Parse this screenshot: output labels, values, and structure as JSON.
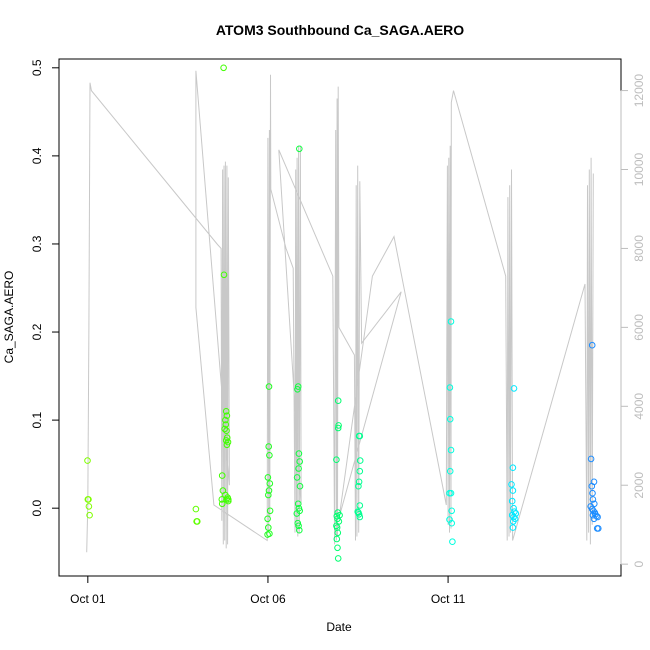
{
  "chart_data": {
    "type": "scatter",
    "title": "ATOM3 Southbound Ca_SAGA.AERO",
    "xlabel": "Date",
    "ylabel": "Ca_SAGA.AERO",
    "x_unit": "days since Oct 01",
    "xlim": [
      -0.8,
      14.8
    ],
    "ylim": [
      -0.077,
      0.51
    ],
    "y2lim": [
      -300,
      12800
    ],
    "x_ticks": [
      {
        "value": 0,
        "label": "Oct 01"
      },
      {
        "value": 5,
        "label": "Oct 06"
      },
      {
        "value": 10,
        "label": "Oct 11"
      }
    ],
    "y_ticks": [
      {
        "value": 0.0,
        "label": "0.0"
      },
      {
        "value": 0.1,
        "label": "0.1"
      },
      {
        "value": 0.2,
        "label": "0.2"
      },
      {
        "value": 0.3,
        "label": "0.3"
      },
      {
        "value": 0.4,
        "label": "0.4"
      },
      {
        "value": 0.5,
        "label": "0.5"
      }
    ],
    "y2_ticks": [
      {
        "value": 0,
        "label": "0"
      },
      {
        "value": 2000,
        "label": "2000"
      },
      {
        "value": 4000,
        "label": "4000"
      },
      {
        "value": 6000,
        "label": "6000"
      },
      {
        "value": 8000,
        "label": "8000"
      },
      {
        "value": 10000,
        "label": "10000"
      },
      {
        "value": 12000,
        "label": "12000"
      }
    ],
    "series": [
      {
        "name": "Ca_SAGA.AERO",
        "points": [
          {
            "x": -0.01,
            "y": 0.054,
            "color": "#80ff00"
          },
          {
            "x": 0.0,
            "y": 0.01,
            "color": "#80ff00"
          },
          {
            "x": 0.02,
            "y": 0.01,
            "color": "#80ff00"
          },
          {
            "x": 0.03,
            "y": 0.002,
            "color": "#80ff00"
          },
          {
            "x": 0.05,
            "y": -0.008,
            "color": "#80ff00"
          },
          {
            "x": 3.0,
            "y": -0.001,
            "color": "#60ff00"
          },
          {
            "x": 3.02,
            "y": -0.015,
            "color": "#60ff00"
          },
          {
            "x": 3.04,
            "y": -0.015,
            "color": "#60ff00"
          },
          {
            "x": 3.77,
            "y": 0.5,
            "color": "#40ff00"
          },
          {
            "x": 3.78,
            "y": 0.265,
            "color": "#40ff00"
          },
          {
            "x": 3.73,
            "y": 0.037,
            "color": "#40ff00"
          },
          {
            "x": 3.75,
            "y": 0.02,
            "color": "#40ff00"
          },
          {
            "x": 3.72,
            "y": 0.01,
            "color": "#40ff00"
          },
          {
            "x": 3.73,
            "y": 0.005,
            "color": "#40ff00"
          },
          {
            "x": 3.8,
            "y": 0.09,
            "color": "#40ff00"
          },
          {
            "x": 3.82,
            "y": 0.1,
            "color": "#40ff00"
          },
          {
            "x": 3.84,
            "y": 0.11,
            "color": "#40ff00"
          },
          {
            "x": 3.86,
            "y": 0.105,
            "color": "#40ff00"
          },
          {
            "x": 3.83,
            "y": 0.095,
            "color": "#40ff00"
          },
          {
            "x": 3.85,
            "y": 0.088,
            "color": "#40ff00"
          },
          {
            "x": 3.87,
            "y": 0.08,
            "color": "#40ff00"
          },
          {
            "x": 3.84,
            "y": 0.077,
            "color": "#40ff00"
          },
          {
            "x": 3.89,
            "y": 0.075,
            "color": "#40ff00"
          },
          {
            "x": 3.86,
            "y": 0.072,
            "color": "#40ff00"
          },
          {
            "x": 3.82,
            "y": 0.015,
            "color": "#40ff00"
          },
          {
            "x": 3.85,
            "y": 0.01,
            "color": "#40ff00"
          },
          {
            "x": 3.88,
            "y": 0.012,
            "color": "#40ff00"
          },
          {
            "x": 3.9,
            "y": 0.008,
            "color": "#40ff00"
          },
          {
            "x": 3.9,
            "y": 0.01,
            "color": "#40ff00"
          },
          {
            "x": 5.03,
            "y": 0.138,
            "color": "#20ff20"
          },
          {
            "x": 5.02,
            "y": 0.07,
            "color": "#20ff20"
          },
          {
            "x": 5.04,
            "y": 0.06,
            "color": "#20ff20"
          },
          {
            "x": 5.0,
            "y": 0.035,
            "color": "#20ff20"
          },
          {
            "x": 5.05,
            "y": 0.028,
            "color": "#20ff20"
          },
          {
            "x": 5.03,
            "y": 0.02,
            "color": "#20ff20"
          },
          {
            "x": 5.01,
            "y": 0.015,
            "color": "#20ff20"
          },
          {
            "x": 5.06,
            "y": -0.003,
            "color": "#20ff20"
          },
          {
            "x": 4.99,
            "y": -0.012,
            "color": "#20ff20"
          },
          {
            "x": 5.01,
            "y": -0.022,
            "color": "#20ff20"
          },
          {
            "x": 4.99,
            "y": -0.03,
            "color": "#20ff20"
          },
          {
            "x": 5.04,
            "y": -0.029,
            "color": "#20ff20"
          },
          {
            "x": 5.87,
            "y": 0.408,
            "color": "#10ff40"
          },
          {
            "x": 5.84,
            "y": 0.138,
            "color": "#10ff40"
          },
          {
            "x": 5.82,
            "y": 0.135,
            "color": "#10ff40"
          },
          {
            "x": 5.86,
            "y": 0.062,
            "color": "#10ff40"
          },
          {
            "x": 5.88,
            "y": 0.053,
            "color": "#10ff40"
          },
          {
            "x": 5.85,
            "y": 0.045,
            "color": "#10ff40"
          },
          {
            "x": 5.81,
            "y": 0.035,
            "color": "#10ff40"
          },
          {
            "x": 5.89,
            "y": 0.025,
            "color": "#10ff40"
          },
          {
            "x": 5.84,
            "y": 0.005,
            "color": "#10ff40"
          },
          {
            "x": 5.86,
            "y": 0.0,
            "color": "#10ff40"
          },
          {
            "x": 5.88,
            "y": -0.003,
            "color": "#10ff40"
          },
          {
            "x": 5.8,
            "y": -0.006,
            "color": "#10ff40"
          },
          {
            "x": 5.83,
            "y": -0.017,
            "color": "#10ff40"
          },
          {
            "x": 5.85,
            "y": -0.02,
            "color": "#10ff40"
          },
          {
            "x": 5.87,
            "y": -0.025,
            "color": "#10ff40"
          },
          {
            "x": 6.95,
            "y": 0.122,
            "color": "#00ff70"
          },
          {
            "x": 6.96,
            "y": 0.094,
            "color": "#00ff70"
          },
          {
            "x": 6.95,
            "y": 0.091,
            "color": "#00ff70"
          },
          {
            "x": 6.9,
            "y": 0.055,
            "color": "#00ff70"
          },
          {
            "x": 6.94,
            "y": -0.005,
            "color": "#00ff70"
          },
          {
            "x": 6.99,
            "y": -0.008,
            "color": "#00ff70"
          },
          {
            "x": 6.91,
            "y": -0.009,
            "color": "#00ff70"
          },
          {
            "x": 6.93,
            "y": -0.012,
            "color": "#00ff70"
          },
          {
            "x": 6.97,
            "y": -0.015,
            "color": "#00ff70"
          },
          {
            "x": 6.9,
            "y": -0.02,
            "color": "#00ff70"
          },
          {
            "x": 6.92,
            "y": -0.022,
            "color": "#00ff70"
          },
          {
            "x": 6.94,
            "y": -0.028,
            "color": "#00ff70"
          },
          {
            "x": 6.91,
            "y": -0.035,
            "color": "#00ff70"
          },
          {
            "x": 6.93,
            "y": -0.045,
            "color": "#00ff70"
          },
          {
            "x": 6.95,
            "y": -0.057,
            "color": "#00ff70"
          },
          {
            "x": 7.53,
            "y": 0.082,
            "color": "#00ff90"
          },
          {
            "x": 7.55,
            "y": 0.082,
            "color": "#00ff90"
          },
          {
            "x": 7.56,
            "y": 0.054,
            "color": "#00ff90"
          },
          {
            "x": 7.55,
            "y": 0.042,
            "color": "#00ff90"
          },
          {
            "x": 7.53,
            "y": 0.03,
            "color": "#00ff90"
          },
          {
            "x": 7.51,
            "y": 0.025,
            "color": "#00ff90"
          },
          {
            "x": 7.55,
            "y": 0.003,
            "color": "#00ff90"
          },
          {
            "x": 7.49,
            "y": -0.004,
            "color": "#00ff90"
          },
          {
            "x": 7.51,
            "y": -0.005,
            "color": "#00ff90"
          },
          {
            "x": 7.53,
            "y": -0.007,
            "color": "#00ff90"
          },
          {
            "x": 7.55,
            "y": -0.01,
            "color": "#00ff90"
          },
          {
            "x": 10.08,
            "y": 0.212,
            "color": "#00ffe0"
          },
          {
            "x": 10.05,
            "y": 0.137,
            "color": "#00ffe0"
          },
          {
            "x": 10.06,
            "y": 0.101,
            "color": "#00ffe0"
          },
          {
            "x": 10.08,
            "y": 0.066,
            "color": "#00ffe0"
          },
          {
            "x": 10.06,
            "y": 0.042,
            "color": "#00ffe0"
          },
          {
            "x": 10.04,
            "y": 0.017,
            "color": "#00ffe0"
          },
          {
            "x": 10.08,
            "y": 0.017,
            "color": "#00ffe0"
          },
          {
            "x": 10.1,
            "y": -0.003,
            "color": "#00ffe0"
          },
          {
            "x": 10.04,
            "y": -0.013,
            "color": "#00ffe0"
          },
          {
            "x": 10.1,
            "y": -0.017,
            "color": "#00ffe0"
          },
          {
            "x": 10.12,
            "y": -0.038,
            "color": "#00ffe0"
          },
          {
            "x": 11.83,
            "y": 0.136,
            "color": "#00e8ff"
          },
          {
            "x": 11.8,
            "y": 0.046,
            "color": "#00e8ff"
          },
          {
            "x": 11.76,
            "y": 0.027,
            "color": "#00e8ff"
          },
          {
            "x": 11.8,
            "y": 0.02,
            "color": "#00e8ff"
          },
          {
            "x": 11.78,
            "y": 0.008,
            "color": "#00e8ff"
          },
          {
            "x": 11.82,
            "y": 0.0,
            "color": "#00e8ff"
          },
          {
            "x": 11.84,
            "y": -0.004,
            "color": "#00e8ff"
          },
          {
            "x": 11.88,
            "y": -0.006,
            "color": "#00e8ff"
          },
          {
            "x": 11.78,
            "y": -0.008,
            "color": "#00e8ff"
          },
          {
            "x": 11.82,
            "y": -0.01,
            "color": "#00e8ff"
          },
          {
            "x": 11.86,
            "y": -0.012,
            "color": "#00e8ff"
          },
          {
            "x": 11.81,
            "y": -0.015,
            "color": "#00e8ff"
          },
          {
            "x": 11.8,
            "y": -0.022,
            "color": "#00e8ff"
          },
          {
            "x": 14.0,
            "y": 0.185,
            "color": "#1c8cff"
          },
          {
            "x": 13.97,
            "y": 0.056,
            "color": "#1c8cff"
          },
          {
            "x": 14.05,
            "y": 0.03,
            "color": "#1c8cff"
          },
          {
            "x": 13.99,
            "y": 0.025,
            "color": "#1c8cff"
          },
          {
            "x": 14.01,
            "y": 0.017,
            "color": "#1c8cff"
          },
          {
            "x": 14.02,
            "y": 0.01,
            "color": "#1c8cff"
          },
          {
            "x": 14.06,
            "y": 0.005,
            "color": "#1c8cff"
          },
          {
            "x": 13.96,
            "y": 0.002,
            "color": "#1c8cff"
          },
          {
            "x": 14.0,
            "y": -0.001,
            "color": "#1c8cff"
          },
          {
            "x": 14.03,
            "y": -0.003,
            "color": "#1c8cff"
          },
          {
            "x": 14.07,
            "y": -0.005,
            "color": "#1c8cff"
          },
          {
            "x": 14.09,
            "y": -0.007,
            "color": "#1c8cff"
          },
          {
            "x": 14.12,
            "y": -0.009,
            "color": "#1c8cff"
          },
          {
            "x": 14.15,
            "y": -0.01,
            "color": "#1c8cff"
          },
          {
            "x": 14.02,
            "y": -0.008,
            "color": "#1c8cff"
          },
          {
            "x": 14.05,
            "y": -0.012,
            "color": "#1c8cff"
          },
          {
            "x": 14.14,
            "y": -0.023,
            "color": "#1c8cff"
          },
          {
            "x": 14.17,
            "y": -0.023,
            "color": "#1c8cff"
          }
        ]
      }
    ],
    "altitude_track": {
      "name": "altitude (right axis)",
      "color": "#c8c8c8",
      "points": [
        [
          -0.03,
          300
        ],
        [
          0.0,
          1500
        ],
        [
          0.03,
          6000
        ],
        [
          0.06,
          12200
        ],
        [
          0.1,
          12000
        ],
        [
          3.6,
          8100
        ],
        [
          3.7,
          8000
        ],
        [
          3.72,
          1100
        ],
        [
          3.74,
          10000
        ],
        [
          3.76,
          500
        ],
        [
          3.78,
          10100
        ],
        [
          3.8,
          600
        ],
        [
          3.82,
          10200
        ],
        [
          3.84,
          400
        ],
        [
          3.86,
          10100
        ],
        [
          3.88,
          500
        ],
        [
          3.9,
          9800
        ],
        [
          3.93,
          2000
        ],
        [
          3.0,
          12500
        ],
        [
          3.0,
          6500
        ],
        [
          3.5,
          1500
        ],
        [
          4.98,
          600
        ],
        [
          5.0,
          10800
        ],
        [
          5.02,
          800
        ],
        [
          5.04,
          11000
        ],
        [
          5.05,
          1200
        ],
        [
          5.07,
          12400
        ],
        [
          5.08,
          9500
        ],
        [
          5.5,
          8000
        ],
        [
          5.7,
          7500
        ],
        [
          5.75,
          800
        ],
        [
          5.77,
          10000
        ],
        [
          5.79,
          900
        ],
        [
          5.81,
          10300
        ],
        [
          5.83,
          700
        ],
        [
          5.85,
          10600
        ],
        [
          5.87,
          800
        ],
        [
          5.9,
          10600
        ],
        [
          5.92,
          1500
        ],
        [
          5.3,
          10500
        ],
        [
          6.8,
          7300
        ],
        [
          6.85,
          500
        ],
        [
          6.88,
          11000
        ],
        [
          6.9,
          600
        ],
        [
          6.92,
          11800
        ],
        [
          6.93,
          700
        ],
        [
          6.95,
          12100
        ],
        [
          6.97,
          6000
        ],
        [
          7.4,
          5300
        ],
        [
          7.43,
          600
        ],
        [
          7.45,
          9600
        ],
        [
          7.47,
          700
        ],
        [
          7.49,
          10100
        ],
        [
          7.52,
          800
        ],
        [
          7.55,
          9700
        ],
        [
          7.6,
          5600
        ],
        [
          8.7,
          6900
        ],
        [
          6.98,
          1200
        ],
        [
          7.9,
          7300
        ],
        [
          8.5,
          8300
        ],
        [
          9.95,
          1500
        ],
        [
          9.98,
          10100
        ],
        [
          10.0,
          1000
        ],
        [
          10.02,
          10300
        ],
        [
          10.04,
          800
        ],
        [
          10.06,
          10600
        ],
        [
          10.08,
          900
        ],
        [
          10.09,
          11700
        ],
        [
          10.15,
          12000
        ],
        [
          11.6,
          7300
        ],
        [
          11.64,
          600
        ],
        [
          11.66,
          9300
        ],
        [
          11.69,
          700
        ],
        [
          11.71,
          9600
        ],
        [
          11.73,
          800
        ],
        [
          11.76,
          10000
        ],
        [
          11.79,
          600
        ],
        [
          13.8,
          7100
        ],
        [
          13.85,
          600
        ],
        [
          13.87,
          9600
        ],
        [
          13.9,
          800
        ],
        [
          13.92,
          10000
        ],
        [
          13.95,
          500
        ],
        [
          13.97,
          10300
        ],
        [
          14.0,
          1000
        ],
        [
          14.03,
          9900
        ]
      ]
    }
  }
}
